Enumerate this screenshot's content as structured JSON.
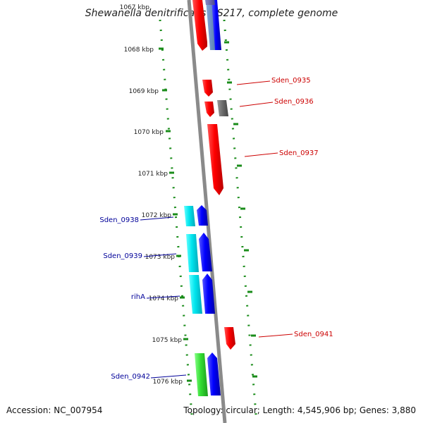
{
  "title": "Shewanella denitrificans OS217, complete genome",
  "footer": {
    "accession": "Accession: NC_007954",
    "topology": "Topology: circular; Length: 4,545,906 bp; Genes: 3,880"
  },
  "kbp_labels": [
    "1067 kbp",
    "1068 kbp",
    "1069 kbp",
    "1070 kbp",
    "1071 kbp",
    "1072 kbp",
    "1073 kbp",
    "1074 kbp",
    "1075 kbp",
    "1076 kbp"
  ],
  "gene_labels": {
    "Sden_0935": "Sden_0935",
    "Sden_0936": "Sden_0936",
    "Sden_0937": "Sden_0937",
    "Sden_0941": "Sden_0941",
    "Sden_0938": "Sden_0938",
    "Sden_0939": "Sden_0939",
    "rihA": "rihA",
    "Sden_0942": "Sden_0942"
  },
  "colors": {
    "forward_strand_label": "#cc0000",
    "reverse_strand_label": "#000099",
    "tick": "#1a8c1a",
    "backbone": "#8a8a8a"
  }
}
